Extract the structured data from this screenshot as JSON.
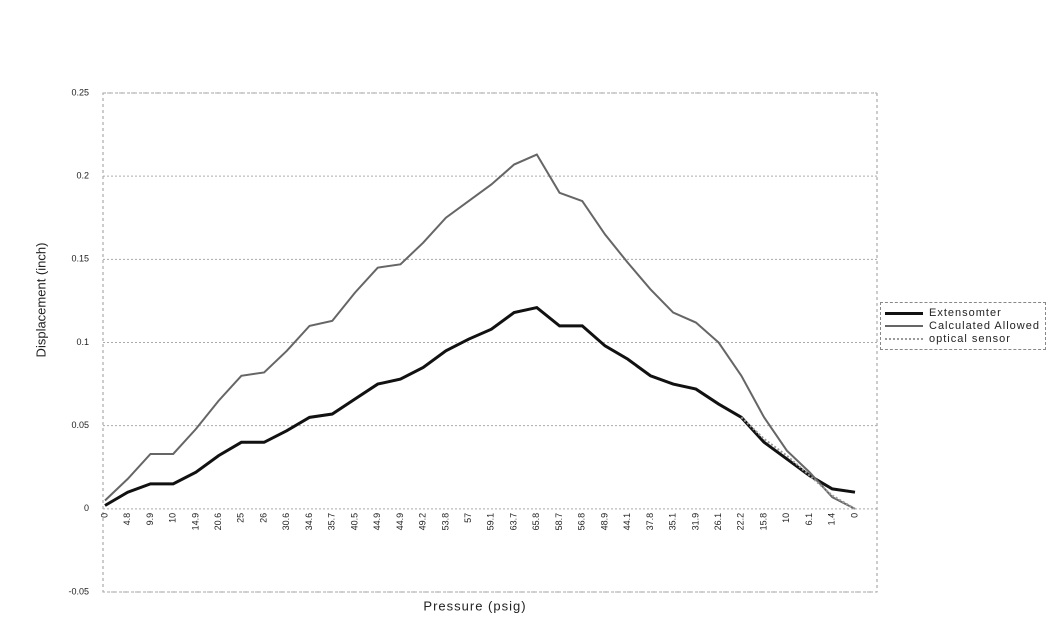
{
  "chart_data": {
    "type": "line",
    "x_label": "Pressure (psig)",
    "y_label": "Displacement (inch)",
    "categories": [
      "0",
      "4.8",
      "9.9",
      "10",
      "14.9",
      "20.6",
      "25",
      "26",
      "30.6",
      "34.6",
      "35.7",
      "40.5",
      "44.9",
      "44.9",
      "49.2",
      "53.8",
      "57",
      "59.1",
      "63.7",
      "65.8",
      "58.7",
      "56.8",
      "48.9",
      "44.1",
      "37.8",
      "35.1",
      "31.9",
      "26.1",
      "22.2",
      "15.8",
      "10",
      "6.1",
      "1.4",
      "0"
    ],
    "series": [
      {
        "name": "Extensomter",
        "color": "#111111",
        "width": 3,
        "dash": false,
        "values": [
          0.002,
          0.01,
          0.015,
          0.015,
          0.022,
          0.032,
          0.04,
          0.04,
          0.047,
          0.055,
          0.057,
          0.066,
          0.075,
          0.078,
          0.085,
          0.095,
          0.102,
          0.108,
          0.118,
          0.121,
          0.11,
          0.11,
          0.098,
          0.09,
          0.08,
          0.075,
          0.072,
          0.063,
          0.055,
          0.04,
          0.03,
          0.02,
          0.012,
          0.01
        ]
      },
      {
        "name": "Calculated Allowed",
        "color": "#666666",
        "width": 2,
        "dash": false,
        "values": [
          0.005,
          0.018,
          0.033,
          0.033,
          0.048,
          0.065,
          0.08,
          0.082,
          0.095,
          0.11,
          0.113,
          0.13,
          0.145,
          0.147,
          0.16,
          0.175,
          0.185,
          0.195,
          0.207,
          0.213,
          0.19,
          0.185,
          0.165,
          0.148,
          0.132,
          0.118,
          0.112,
          0.1,
          0.08,
          0.055,
          0.035,
          0.022,
          0.007,
          0
        ]
      },
      {
        "name": "optical sensor",
        "color": "#999999",
        "width": 2,
        "dash": true,
        "values": [
          null,
          null,
          null,
          null,
          null,
          null,
          null,
          null,
          null,
          null,
          null,
          null,
          null,
          null,
          null,
          null,
          null,
          null,
          null,
          null,
          null,
          null,
          null,
          null,
          null,
          null,
          null,
          null,
          0.055,
          0.042,
          0.032,
          0.02,
          0.008,
          0
        ]
      }
    ],
    "ylim": [
      -0.05,
      0.25
    ],
    "yticks": [
      -0.05,
      0,
      0.05,
      0.1,
      0.15,
      0.2,
      0.25
    ],
    "grid": true,
    "legend": "right"
  }
}
